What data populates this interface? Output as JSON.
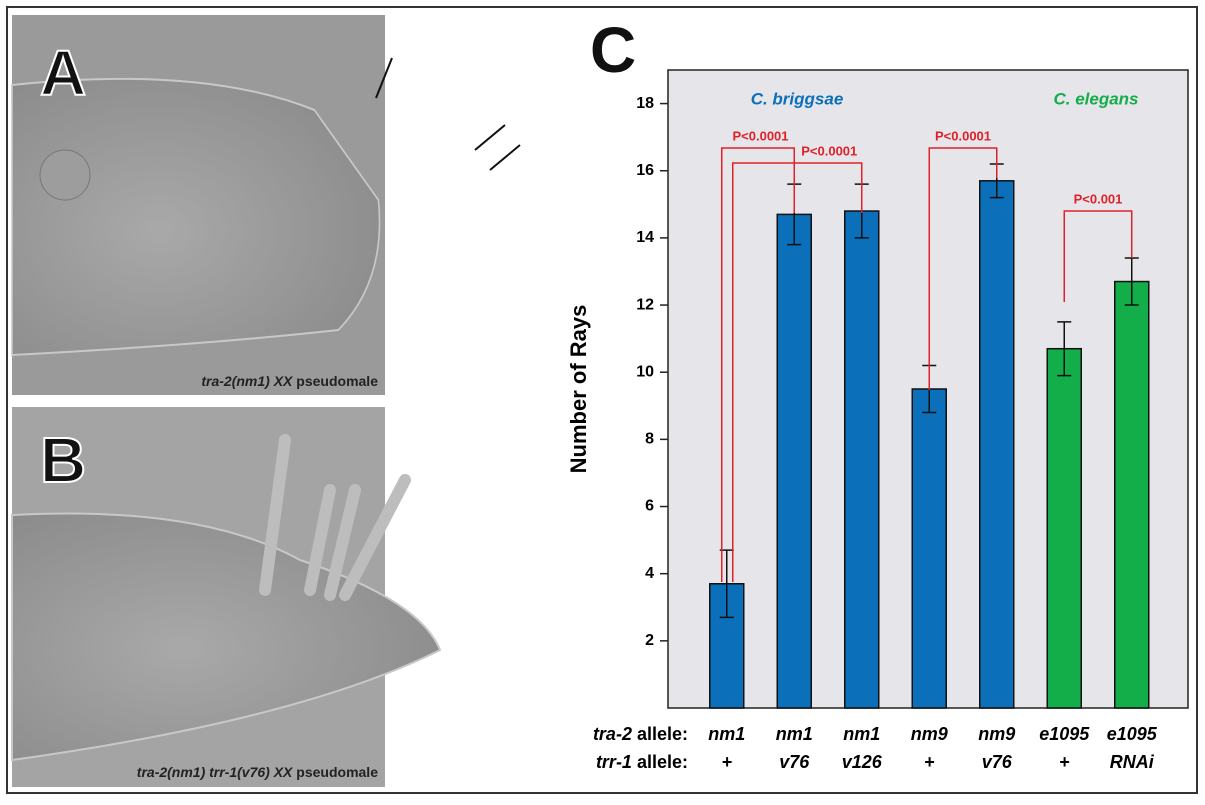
{
  "panels": {
    "a": {
      "letter": "A",
      "caption_gene": "tra-2(nm1) XX",
      "caption_rest": "pseudomale"
    },
    "b": {
      "letter": "B",
      "caption_gene": "tra-2(nm1) trr-1(v76) XX",
      "caption_rest": "pseudomale"
    },
    "c": {
      "letter": "C"
    }
  },
  "chart_data": {
    "type": "bar",
    "ylabel": "Number of Rays",
    "categories": [
      "nm1",
      "nm1",
      "nm1",
      "nm9",
      "nm9",
      "e1095",
      "e1095"
    ],
    "categories2": [
      "+",
      "v76",
      "v126",
      "+",
      "v76",
      "+",
      "RNAi"
    ],
    "row_labels": [
      {
        "gene": "tra-2",
        "suffix": "allele:"
      },
      {
        "gene": "trr-1",
        "suffix": "allele:"
      }
    ],
    "values": [
      3.7,
      14.7,
      14.8,
      9.5,
      15.7,
      10.7,
      12.7
    ],
    "errors": [
      1.0,
      0.9,
      0.8,
      0.7,
      0.5,
      0.8,
      0.7
    ],
    "colors": [
      "#0b6fba",
      "#0b6fba",
      "#0b6fba",
      "#0b6fba",
      "#0b6fba",
      "#13ad4a",
      "#13ad4a"
    ],
    "groups": [
      {
        "name": "C. briggsae",
        "color": "#0b6fba"
      },
      {
        "name": "C. elegans",
        "color": "#13ad4a"
      }
    ],
    "comparisons": [
      {
        "label": "P<0.0001",
        "from": 0,
        "to": 1
      },
      {
        "label": "P<0.0001",
        "from": 0,
        "to": 2
      },
      {
        "label": "P<0.0001",
        "from": 3,
        "to": 4
      },
      {
        "label": "P<0.001",
        "from": 5,
        "to": 6
      }
    ],
    "comparison_color": "#e0202a",
    "ylim": [
      0,
      19
    ],
    "yticks": [
      2,
      4,
      6,
      8,
      10,
      12,
      14,
      16,
      18
    ]
  }
}
